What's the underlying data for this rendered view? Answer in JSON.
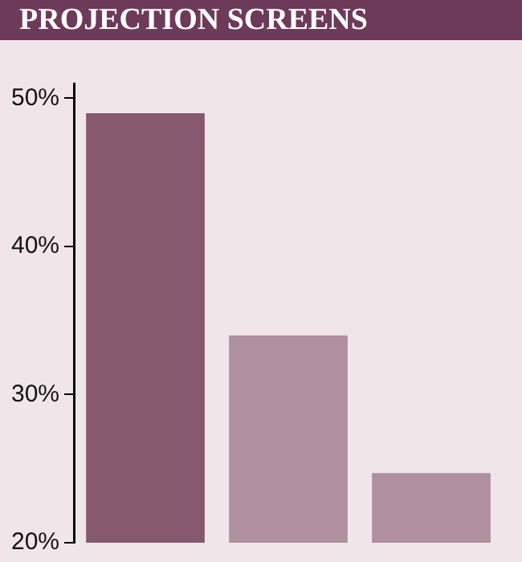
{
  "chart_data": {
    "type": "bar",
    "title": "PROJECTION SCREENS",
    "categories": [
      null,
      null,
      null
    ],
    "values": [
      49,
      34,
      24.7
    ],
    "colors": [
      "#87596f",
      "#b0909c",
      "#b0909c"
    ],
    "ylim": [
      20,
      51
    ],
    "yticks": [
      {
        "value": 20,
        "label": "20%"
      },
      {
        "value": 30,
        "label": "30%"
      },
      {
        "value": 40,
        "label": "40%"
      },
      {
        "value": 50,
        "label": "50%"
      }
    ],
    "grid": false,
    "legend": false
  }
}
